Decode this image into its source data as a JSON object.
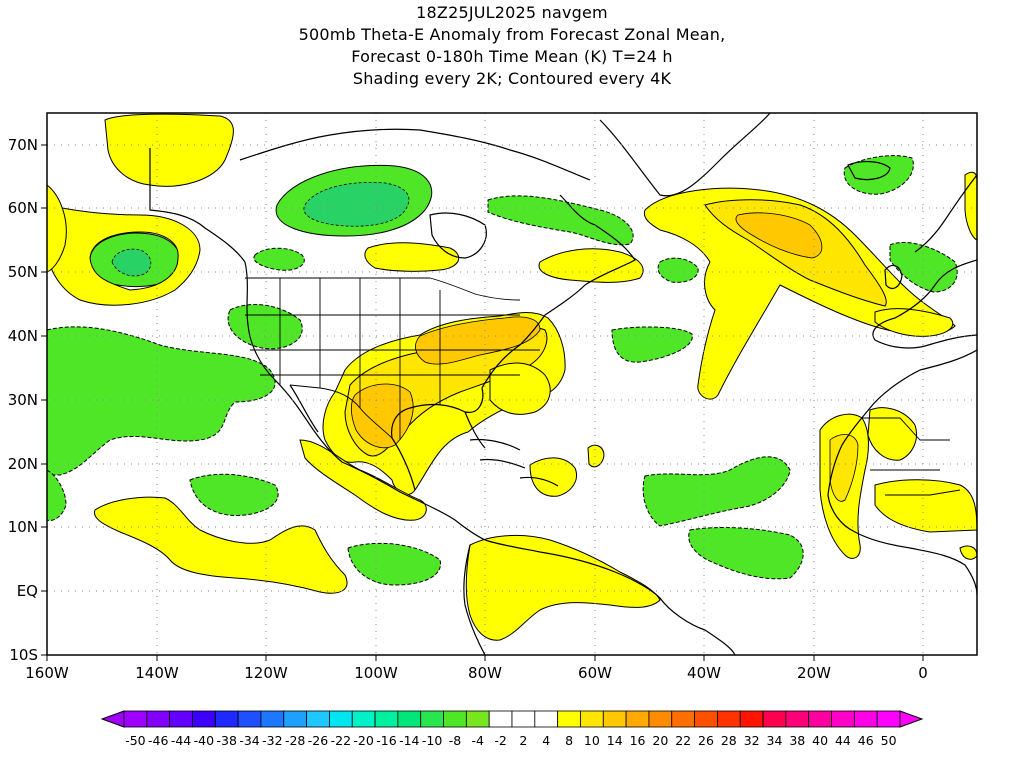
{
  "title": {
    "line1": "18Z25JUL2025 navgem",
    "line2": "500mb Theta-E Anomaly from Forecast Zonal Mean,",
    "line3": "Forecast 0-180h Time Mean (K) T=24 h",
    "line4": "Shading every 2K; Contoured every 4K"
  },
  "axes": {
    "lat_labels": [
      "70N",
      "60N",
      "50N",
      "40N",
      "30N",
      "20N",
      "10N",
      "EQ",
      "10S"
    ],
    "lon_labels": [
      "160W",
      "140W",
      "120W",
      "100W",
      "80W",
      "60W",
      "40W",
      "20W",
      "0"
    ]
  },
  "colorbar": {
    "labels": [
      "-50",
      "-46",
      "-44",
      "-40",
      "-38",
      "-34",
      "-32",
      "-28",
      "-26",
      "-22",
      "-20",
      "-16",
      "-14",
      "-10",
      "-8",
      "-4",
      "-2",
      "2",
      "4",
      "8",
      "10",
      "14",
      "16",
      "20",
      "22",
      "26",
      "28",
      "32",
      "34",
      "38",
      "40",
      "44",
      "46",
      "50"
    ],
    "colors": [
      "#a000ff",
      "#8200ff",
      "#6400ff",
      "#3c00ff",
      "#1e28ff",
      "#1e50ff",
      "#1e78ff",
      "#1ea0ff",
      "#1ec8ff",
      "#00e6f0",
      "#00f0c8",
      "#00f0a0",
      "#00e678",
      "#28e650",
      "#50e628",
      "#78e61e",
      "#ffffff",
      "#ffffff",
      "#ffffff",
      "#ffff00",
      "#ffe600",
      "#ffc800",
      "#ffaa00",
      "#ff8c00",
      "#ff6e00",
      "#ff5000",
      "#ff3200",
      "#ff1400",
      "#ff0050",
      "#ff0078",
      "#ff00a0",
      "#ff00c8",
      "#ff00e6",
      "#ff00ff"
    ]
  },
  "fill_colors": {
    "negative": "#50e628",
    "negative_strong": "#28d264",
    "positive": "#ffff00",
    "positive_mid": "#ffe600",
    "positive_strong": "#ffc800"
  }
}
